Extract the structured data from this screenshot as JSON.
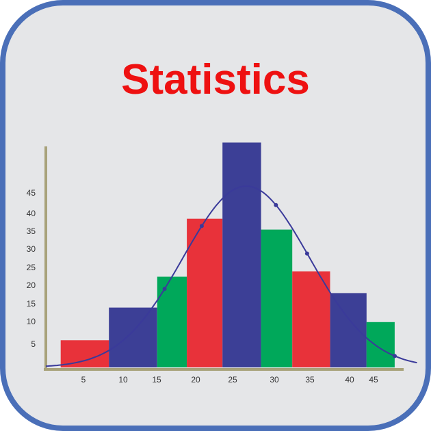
{
  "app_icon": {
    "title": "Statistics",
    "colors": {
      "frame": "#4a6fb8",
      "background": "#e5e6e8",
      "title": "#ee1111",
      "axis": "#a8a27a",
      "curve": "#3a3a9a",
      "red": "#e8323a",
      "blue": "#3c3f96",
      "green": "#00a85a"
    }
  },
  "chart_data": {
    "type": "bar",
    "title": "",
    "xlabel": "",
    "ylabel": "",
    "x_ticks": [
      "5",
      "10",
      "15",
      "20",
      "25",
      "30",
      "35",
      "40",
      "45"
    ],
    "y_ticks": [
      "5",
      "10",
      "15",
      "20",
      "25",
      "30",
      "35",
      "40",
      "45"
    ],
    "bars": [
      {
        "from": 2,
        "to": 8.5,
        "value": 7.5,
        "color": "red"
      },
      {
        "from": 8.5,
        "to": 15,
        "value": 16.5,
        "color": "blue"
      },
      {
        "from": 15,
        "to": 19,
        "value": 25,
        "color": "green"
      },
      {
        "from": 19,
        "to": 23.8,
        "value": 41,
        "color": "red"
      },
      {
        "from": 23.8,
        "to": 29,
        "value": 62,
        "color": "blue"
      },
      {
        "from": 29,
        "to": 33.2,
        "value": 38,
        "color": "green"
      },
      {
        "from": 33.2,
        "to": 38.3,
        "value": 26.5,
        "color": "red"
      },
      {
        "from": 38.3,
        "to": 43.2,
        "value": 20.5,
        "color": "blue"
      },
      {
        "from": 43.2,
        "to": 47,
        "value": 12.5,
        "color": "green"
      }
    ],
    "curve": {
      "type": "normal",
      "mean": 27,
      "sd": 8.5,
      "peak": 50,
      "markers_x": [
        16,
        21,
        31,
        35.2,
        47
      ]
    }
  }
}
